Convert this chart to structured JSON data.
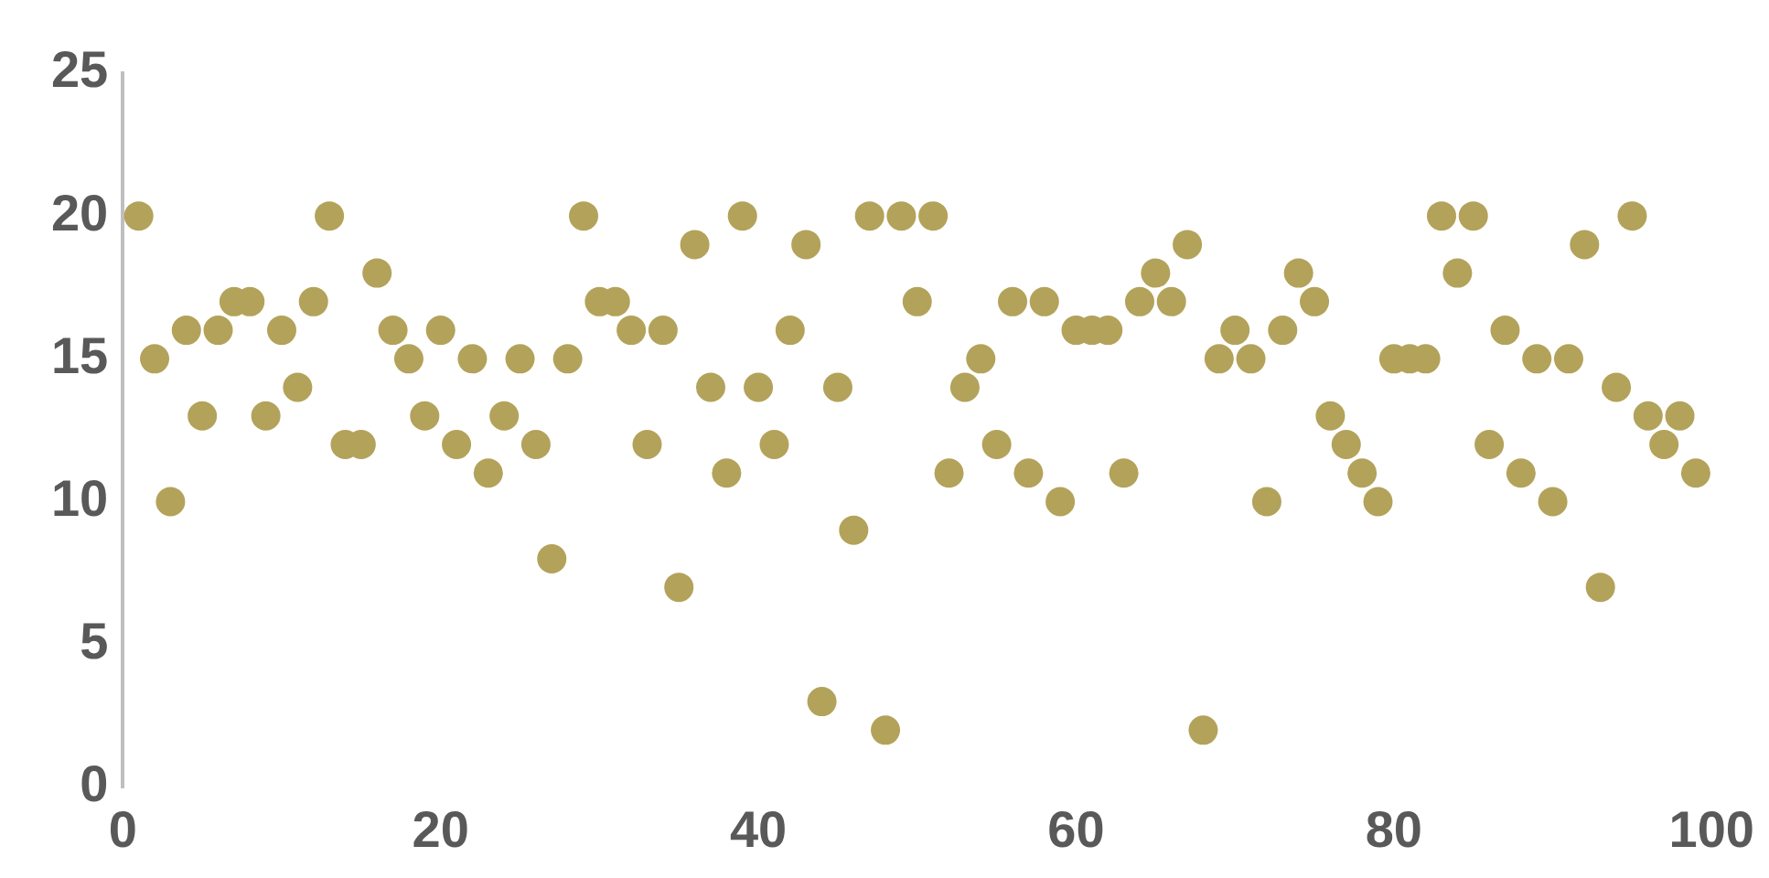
{
  "chart_data": {
    "type": "scatter",
    "x": [
      1,
      2,
      3,
      4,
      5,
      6,
      7,
      8,
      9,
      10,
      11,
      12,
      13,
      14,
      15,
      16,
      17,
      18,
      19,
      20,
      21,
      22,
      23,
      24,
      25,
      26,
      27,
      28,
      29,
      30,
      31,
      32,
      33,
      34,
      35,
      36,
      37,
      38,
      39,
      40,
      41,
      42,
      43,
      44,
      45,
      46,
      47,
      48,
      49,
      50,
      51,
      52,
      53,
      54,
      55,
      56,
      57,
      58,
      59,
      60,
      61,
      62,
      63,
      64,
      65,
      66,
      67,
      68,
      69,
      70,
      71,
      72,
      73,
      74,
      75,
      76,
      77,
      78,
      79,
      80,
      81,
      82,
      83,
      84,
      85,
      86,
      87,
      88,
      89,
      90,
      91,
      92,
      93,
      94,
      95,
      96,
      97,
      98,
      99
    ],
    "values": [
      20,
      15,
      10,
      16,
      13,
      16,
      17,
      17,
      13,
      16,
      14,
      17,
      20,
      12,
      12,
      18,
      16,
      15,
      13,
      16,
      12,
      15,
      11,
      13,
      15,
      12,
      8,
      15,
      20,
      17,
      17,
      16,
      12,
      16,
      7,
      19,
      14,
      11,
      20,
      14,
      12,
      16,
      19,
      3,
      14,
      9,
      20,
      2,
      20,
      17,
      20,
      11,
      14,
      15,
      12,
      17,
      11,
      17,
      10,
      16,
      16,
      16,
      11,
      17,
      18,
      17,
      19,
      2,
      15,
      16,
      15,
      10,
      16,
      18,
      17,
      13,
      12,
      11,
      10,
      15,
      15,
      15,
      20,
      18,
      20,
      12,
      16,
      11,
      15,
      10,
      15,
      19,
      7,
      14,
      20,
      13,
      12,
      13,
      11
    ],
    "color": "#b3a25a",
    "marker": "circle",
    "xlim": [
      0,
      100
    ],
    "xticks": [
      0,
      20,
      40,
      60,
      80,
      100
    ],
    "ylim": [
      0,
      25
    ],
    "yticks": [
      0,
      5,
      10,
      15,
      20,
      25
    ],
    "grid": false,
    "legend": false
  }
}
